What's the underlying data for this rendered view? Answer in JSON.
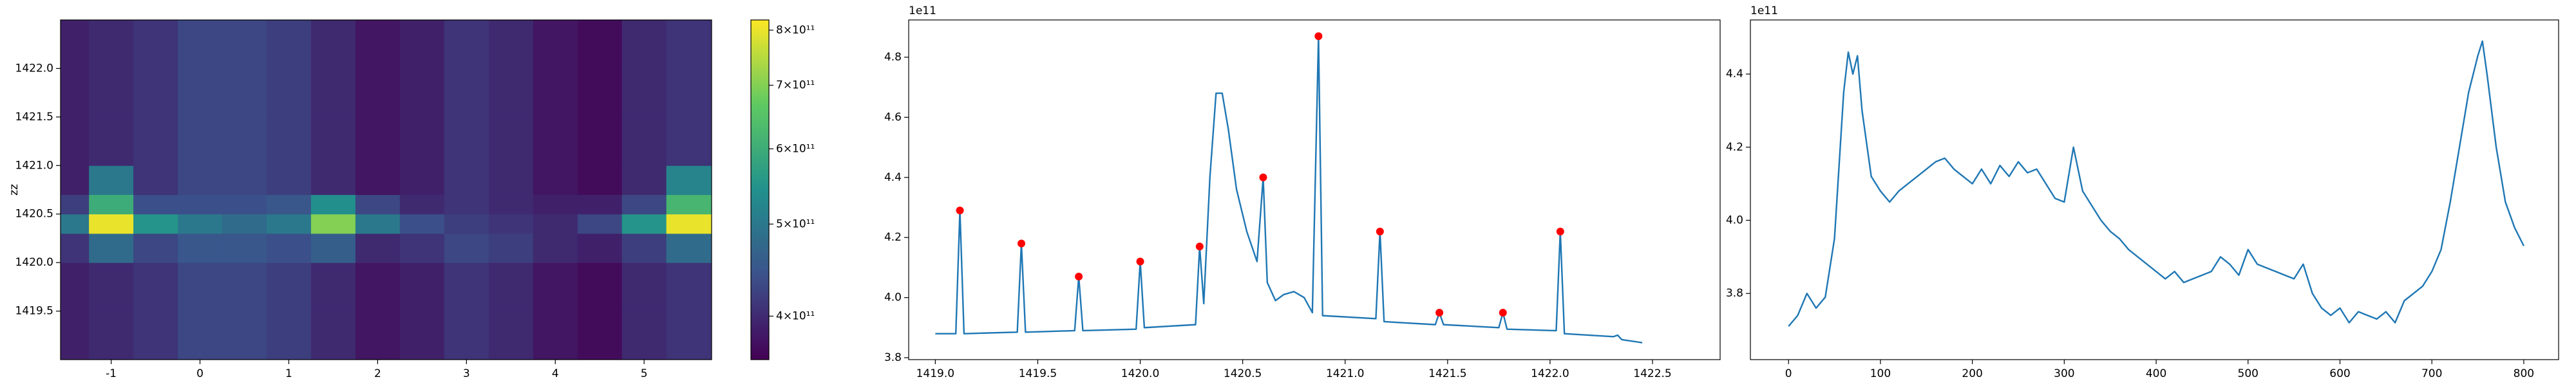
{
  "chart_data": [
    {
      "type": "heatmap",
      "ylabel": "zz",
      "colormap": "viridis",
      "x_edges": [
        -1.57,
        -1.25,
        -0.75,
        -0.25,
        0.25,
        0.75,
        1.25,
        1.75,
        2.25,
        2.75,
        3.25,
        3.75,
        4.25,
        4.75,
        5.25,
        5.76
      ],
      "y_edges": [
        1419.0,
        1419.5,
        1420.0,
        1420.3,
        1420.5,
        1420.7,
        1421.0,
        1421.5,
        1422.0,
        1422.5
      ],
      "z": [
        [
          390000000000.0,
          400000000000.0,
          410000000000.0,
          430000000000.0,
          430000000000.0,
          420000000000.0,
          400000000000.0,
          380000000000.0,
          390000000000.0,
          410000000000.0,
          400000000000.0,
          380000000000.0,
          370000000000.0,
          400000000000.0,
          410000000000.0
        ],
        [
          390000000000.0,
          400000000000.0,
          410000000000.0,
          430000000000.0,
          430000000000.0,
          420000000000.0,
          400000000000.0,
          380000000000.0,
          390000000000.0,
          410000000000.0,
          400000000000.0,
          380000000000.0,
          370000000000.0,
          400000000000.0,
          410000000000.0
        ],
        [
          410000000000.0,
          480000000000.0,
          430000000000.0,
          450000000000.0,
          450000000000.0,
          440000000000.0,
          460000000000.0,
          400000000000.0,
          410000000000.0,
          430000000000.0,
          420000000000.0,
          400000000000.0,
          390000000000.0,
          420000000000.0,
          480000000000.0
        ],
        [
          500000000000.0,
          800000000000.0,
          550000000000.0,
          500000000000.0,
          480000000000.0,
          500000000000.0,
          700000000000.0,
          500000000000.0,
          440000000000.0,
          420000000000.0,
          410000000000.0,
          400000000000.0,
          430000000000.0,
          550000000000.0,
          800000000000.0
        ],
        [
          420000000000.0,
          600000000000.0,
          440000000000.0,
          440000000000.0,
          440000000000.0,
          450000000000.0,
          540000000000.0,
          430000000000.0,
          400000000000.0,
          410000000000.0,
          400000000000.0,
          390000000000.0,
          390000000000.0,
          430000000000.0,
          620000000000.0
        ],
        [
          390000000000.0,
          500000000000.0,
          410000000000.0,
          430000000000.0,
          430000000000.0,
          420000000000.0,
          400000000000.0,
          380000000000.0,
          390000000000.0,
          410000000000.0,
          400000000000.0,
          380000000000.0,
          370000000000.0,
          400000000000.0,
          520000000000.0
        ],
        [
          390000000000.0,
          400000000000.0,
          410000000000.0,
          430000000000.0,
          430000000000.0,
          420000000000.0,
          400000000000.0,
          380000000000.0,
          390000000000.0,
          410000000000.0,
          400000000000.0,
          380000000000.0,
          370000000000.0,
          400000000000.0,
          410000000000.0
        ],
        [
          390000000000.0,
          400000000000.0,
          410000000000.0,
          430000000000.0,
          430000000000.0,
          420000000000.0,
          400000000000.0,
          380000000000.0,
          390000000000.0,
          410000000000.0,
          400000000000.0,
          380000000000.0,
          370000000000.0,
          400000000000.0,
          410000000000.0
        ],
        [
          390000000000.0,
          400000000000.0,
          410000000000.0,
          430000000000.0,
          430000000000.0,
          420000000000.0,
          400000000000.0,
          380000000000.0,
          390000000000.0,
          410000000000.0,
          400000000000.0,
          380000000000.0,
          370000000000.0,
          400000000000.0,
          410000000000.0
        ]
      ],
      "xlim": [
        -1.57,
        5.76
      ],
      "ylim": [
        1419.0,
        1422.5
      ],
      "xticks": [
        -1,
        0,
        1,
        2,
        3,
        4,
        5
      ],
      "yticks": [
        1419.5,
        {
          "value": 1420.0,
          "label": "1420.0"
        },
        1420.5,
        {
          "value": 1421.0,
          "label": "1421.0"
        },
        1421.5,
        {
          "value": 1422.0,
          "label": "1422.0"
        }
      ],
      "colorbar": {
        "clim": [
          360000000000.0,
          820000000000.0
        ],
        "log": true,
        "ticks": [
          {
            "value": 400000000000.0,
            "label": "4×10¹¹"
          },
          {
            "value": 500000000000.0,
            "label": "5×10¹¹"
          },
          {
            "value": 600000000000.0,
            "label": "6×10¹¹"
          },
          {
            "value": 700000000000.0,
            "label": "7×10¹¹"
          },
          {
            "value": 800000000000.0,
            "label": "8×10¹¹"
          }
        ]
      }
    },
    {
      "type": "line",
      "y_offset_label": "1e11",
      "x": [
        1419.0,
        1419.1,
        1419.12,
        1419.14,
        1419.4,
        1419.42,
        1419.44,
        1419.68,
        1419.7,
        1419.72,
        1419.98,
        1420.0,
        1420.02,
        1420.27,
        1420.29,
        1420.31,
        1420.34,
        1420.37,
        1420.4,
        1420.43,
        1420.47,
        1420.52,
        1420.57,
        1420.6,
        1420.62,
        1420.66,
        1420.7,
        1420.75,
        1420.8,
        1420.84,
        1420.87,
        1420.89,
        1421.15,
        1421.17,
        1421.19,
        1421.44,
        1421.46,
        1421.48,
        1421.75,
        1421.77,
        1421.79,
        1422.03,
        1422.05,
        1422.07,
        1422.31,
        1422.33,
        1422.35,
        1422.45
      ],
      "series": [
        {
          "color": "#1f77b4",
          "values": [
            3.88,
            3.88,
            4.29,
            3.88,
            3.885,
            4.18,
            3.885,
            3.89,
            4.07,
            3.89,
            3.895,
            4.12,
            3.9,
            3.91,
            4.17,
            3.98,
            4.4,
            4.68,
            4.68,
            4.56,
            4.36,
            4.22,
            4.12,
            4.4,
            4.05,
            3.99,
            4.01,
            4.02,
            4.0,
            3.95,
            4.87,
            3.94,
            3.93,
            4.22,
            3.92,
            3.91,
            3.95,
            3.91,
            3.9,
            3.95,
            3.895,
            3.89,
            4.22,
            3.88,
            3.87,
            3.875,
            3.86,
            3.85
          ]
        }
      ],
      "markers": {
        "color": "red",
        "x": [
          1419.12,
          1419.42,
          1419.7,
          1420.0,
          1420.29,
          1420.6,
          1420.87,
          1421.17,
          1421.46,
          1421.77,
          1422.05
        ],
        "values": [
          4.29,
          4.18,
          4.07,
          4.12,
          4.17,
          4.4,
          4.87,
          4.22,
          3.95,
          3.95,
          4.22
        ]
      },
      "xlim": [
        1418.87,
        1422.83
      ],
      "ylim": [
        3.7936,
        4.924
      ],
      "xticks": [
        {
          "value": 1419.0,
          "label": "1419.0"
        },
        1419.5,
        {
          "value": 1420.0,
          "label": "1420.0"
        },
        1420.5,
        {
          "value": 1421.0,
          "label": "1421.0"
        },
        1421.5,
        {
          "value": 1422.0,
          "label": "1422.0"
        },
        1422.5
      ],
      "yticks": [
        3.8,
        {
          "value": 4.0,
          "label": "4.0"
        },
        4.2,
        4.4,
        4.6,
        4.8
      ]
    },
    {
      "type": "line",
      "y_offset_label": "1e11",
      "x": [
        0,
        10,
        20,
        30,
        40,
        50,
        60,
        65,
        70,
        75,
        80,
        90,
        100,
        110,
        120,
        130,
        140,
        150,
        160,
        170,
        180,
        190,
        200,
        210,
        220,
        230,
        240,
        250,
        260,
        270,
        280,
        290,
        300,
        310,
        320,
        330,
        340,
        350,
        360,
        370,
        380,
        390,
        400,
        410,
        420,
        430,
        440,
        450,
        460,
        470,
        480,
        490,
        500,
        510,
        520,
        530,
        540,
        550,
        560,
        570,
        580,
        590,
        600,
        610,
        620,
        630,
        640,
        650,
        660,
        670,
        680,
        690,
        700,
        710,
        720,
        730,
        740,
        750,
        755,
        760,
        770,
        780,
        790,
        800
      ],
      "series": [
        {
          "color": "#1f77b4",
          "values": [
            3.71,
            3.74,
            3.8,
            3.76,
            3.79,
            3.95,
            4.35,
            4.46,
            4.4,
            4.45,
            4.3,
            4.12,
            4.08,
            4.05,
            4.08,
            4.1,
            4.12,
            4.14,
            4.16,
            4.17,
            4.14,
            4.12,
            4.1,
            4.14,
            4.1,
            4.15,
            4.12,
            4.16,
            4.13,
            4.14,
            4.1,
            4.06,
            4.05,
            4.2,
            4.08,
            4.04,
            4.0,
            3.97,
            3.95,
            3.92,
            3.9,
            3.88,
            3.86,
            3.84,
            3.86,
            3.83,
            3.84,
            3.85,
            3.86,
            3.9,
            3.88,
            3.85,
            3.92,
            3.88,
            3.87,
            3.86,
            3.85,
            3.84,
            3.88,
            3.8,
            3.76,
            3.74,
            3.76,
            3.72,
            3.75,
            3.74,
            3.73,
            3.75,
            3.72,
            3.78,
            3.8,
            3.82,
            3.86,
            3.92,
            4.05,
            4.2,
            4.35,
            4.45,
            4.49,
            4.4,
            4.2,
            4.05,
            3.98,
            3.93
          ]
        }
      ],
      "xlim": [
        -41.5,
        837.9
      ],
      "ylim": [
        3.619,
        4.548
      ],
      "xticks": [
        0,
        100,
        200,
        300,
        400,
        500,
        600,
        700,
        800
      ],
      "yticks": [
        3.8,
        {
          "value": 4.0,
          "label": "4.0"
        },
        4.2,
        4.4
      ]
    }
  ]
}
